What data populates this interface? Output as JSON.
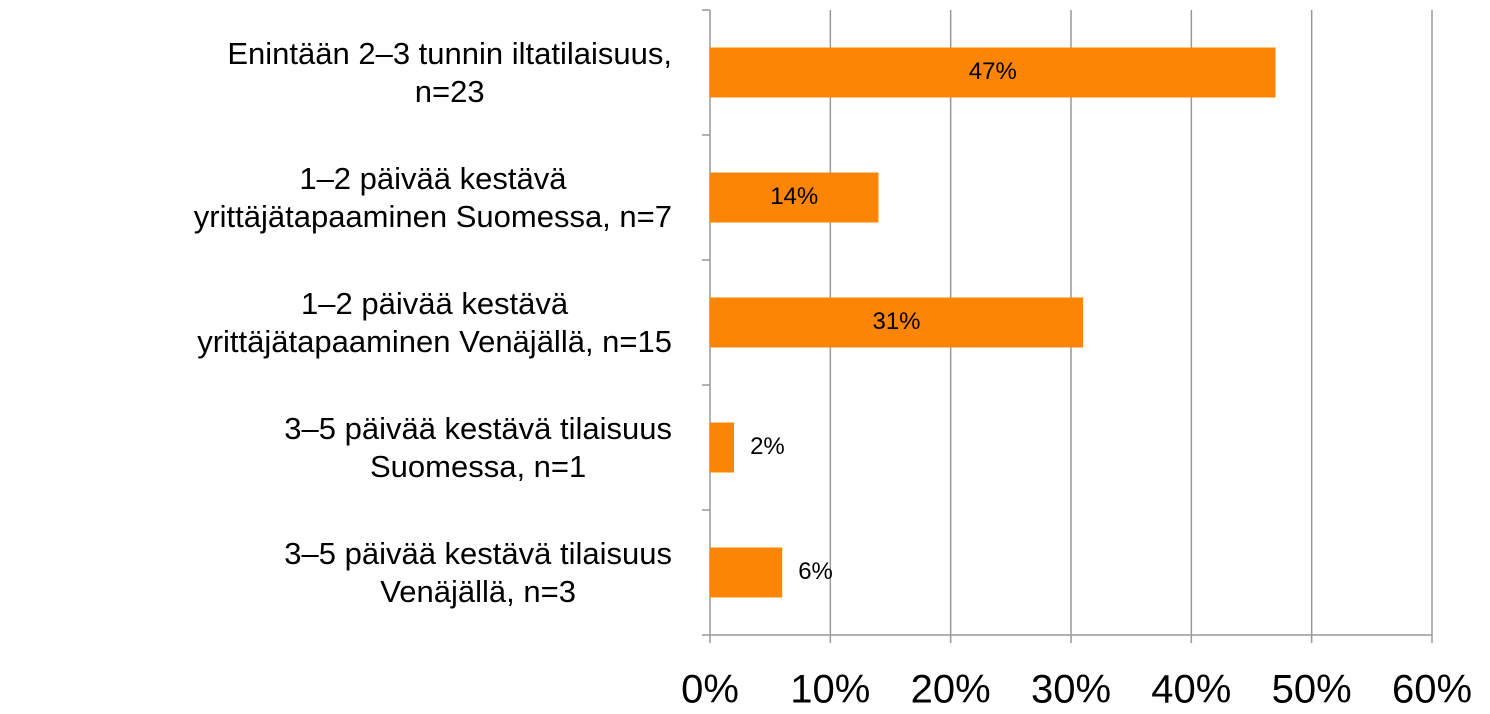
{
  "chart_data": {
    "type": "bar",
    "orientation": "horizontal",
    "categories": [
      "Enintään 2–3 tunnin iltatilaisuus,\nn=23",
      "1–2 päivää kestävä\nyrittäjätapaaminen Suomessa, n=7",
      "1–2 päivää kestävä\nyrittäjätapaaminen Venäjällä, n=15",
      "3–5 päivää kestävä tilaisuus\nSuomessa, n=1",
      "3–5 päivää kestävä tilaisuus\nVenäjällä, n=3"
    ],
    "values": [
      47,
      14,
      31,
      2,
      6
    ],
    "value_labels": [
      "47%",
      "14%",
      "31%",
      "2%",
      "6%"
    ],
    "color": "#fd8505",
    "xlim": [
      0,
      60
    ],
    "xticks": [
      {
        "value": 0,
        "label": "0%"
      },
      {
        "value": 10,
        "label": "10%"
      },
      {
        "value": 20,
        "label": "20%"
      },
      {
        "value": 30,
        "label": "30%"
      },
      {
        "value": 40,
        "label": "40%"
      },
      {
        "value": 50,
        "label": "50%"
      },
      {
        "value": 60,
        "label": "60%"
      }
    ],
    "grid": true
  }
}
